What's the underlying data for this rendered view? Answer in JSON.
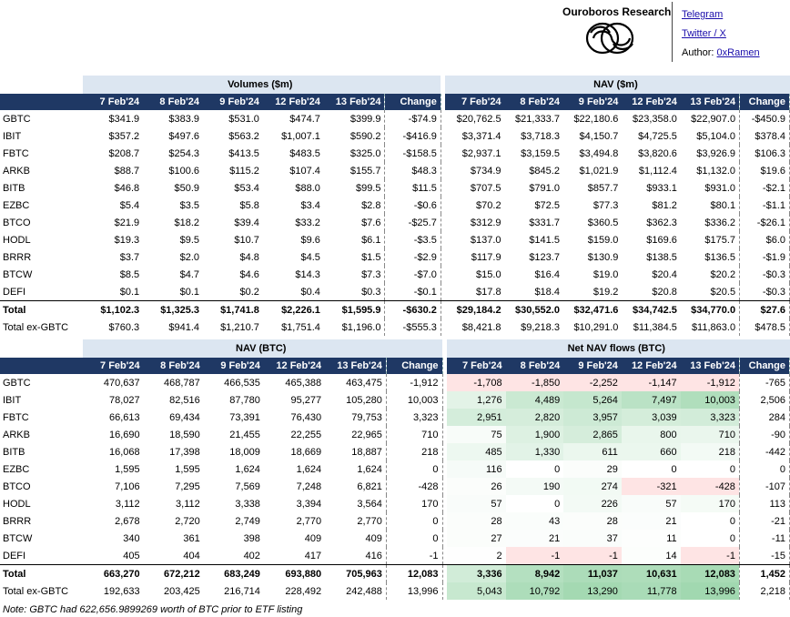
{
  "header": {
    "brand": "Ouroboros Research",
    "links": {
      "telegram": "Telegram",
      "twitter": "Twitter / X",
      "author_prefix": "Author: ",
      "author_handle": "0xRamen"
    }
  },
  "dates": [
    "7 Feb'24",
    "8 Feb'24",
    "9 Feb'24",
    "12 Feb'24",
    "13 Feb'24"
  ],
  "change_label": "Change",
  "top": {
    "left_title": "Volumes ($m)",
    "right_title": "NAV ($m)",
    "rows": [
      {
        "label": "GBTC",
        "vol": [
          "$341.9",
          "$383.9",
          "$531.0",
          "$474.7",
          "$399.9",
          "-$74.9"
        ],
        "nav": [
          "$20,762.5",
          "$21,333.7",
          "$22,180.6",
          "$23,358.0",
          "$22,907.0",
          "-$450.9"
        ]
      },
      {
        "label": "IBIT",
        "vol": [
          "$357.2",
          "$497.6",
          "$563.2",
          "$1,007.1",
          "$590.2",
          "-$416.9"
        ],
        "nav": [
          "$3,371.4",
          "$3,718.3",
          "$4,150.7",
          "$4,725.5",
          "$5,104.0",
          "$378.4"
        ]
      },
      {
        "label": "FBTC",
        "vol": [
          "$208.7",
          "$254.3",
          "$413.5",
          "$483.5",
          "$325.0",
          "-$158.5"
        ],
        "nav": [
          "$2,937.1",
          "$3,159.5",
          "$3,494.8",
          "$3,820.6",
          "$3,926.9",
          "$106.3"
        ]
      },
      {
        "label": "ARKB",
        "vol": [
          "$88.7",
          "$100.6",
          "$115.2",
          "$107.4",
          "$155.7",
          "$48.3"
        ],
        "nav": [
          "$734.9",
          "$845.2",
          "$1,021.9",
          "$1,112.4",
          "$1,132.0",
          "$19.6"
        ]
      },
      {
        "label": "BITB",
        "vol": [
          "$46.8",
          "$50.9",
          "$53.4",
          "$88.0",
          "$99.5",
          "$11.5"
        ],
        "nav": [
          "$707.5",
          "$791.0",
          "$857.7",
          "$933.1",
          "$931.0",
          "-$2.1"
        ]
      },
      {
        "label": "EZBC",
        "vol": [
          "$5.4",
          "$3.5",
          "$5.8",
          "$3.4",
          "$2.8",
          "-$0.6"
        ],
        "nav": [
          "$70.2",
          "$72.5",
          "$77.3",
          "$81.2",
          "$80.1",
          "-$1.1"
        ]
      },
      {
        "label": "BTCO",
        "vol": [
          "$21.9",
          "$18.2",
          "$39.4",
          "$33.2",
          "$7.6",
          "-$25.7"
        ],
        "nav": [
          "$312.9",
          "$331.7",
          "$360.5",
          "$362.3",
          "$336.2",
          "-$26.1"
        ]
      },
      {
        "label": "HODL",
        "vol": [
          "$19.3",
          "$9.5",
          "$10.7",
          "$9.6",
          "$6.1",
          "-$3.5"
        ],
        "nav": [
          "$137.0",
          "$141.5",
          "$159.0",
          "$169.6",
          "$175.7",
          "$6.0"
        ]
      },
      {
        "label": "BRRR",
        "vol": [
          "$3.7",
          "$2.0",
          "$4.8",
          "$4.5",
          "$1.5",
          "-$2.9"
        ],
        "nav": [
          "$117.9",
          "$123.7",
          "$130.9",
          "$138.5",
          "$136.5",
          "-$1.9"
        ]
      },
      {
        "label": "BTCW",
        "vol": [
          "$8.5",
          "$4.7",
          "$4.6",
          "$14.3",
          "$7.3",
          "-$7.0"
        ],
        "nav": [
          "$15.0",
          "$16.4",
          "$19.0",
          "$20.4",
          "$20.2",
          "-$0.3"
        ]
      },
      {
        "label": "DEFI",
        "vol": [
          "$0.1",
          "$0.1",
          "$0.2",
          "$0.4",
          "$0.3",
          "-$0.1"
        ],
        "nav": [
          "$17.8",
          "$18.4",
          "$19.2",
          "$20.8",
          "$20.5",
          "-$0.3"
        ]
      }
    ],
    "total": {
      "label": "Total",
      "vol": [
        "$1,102.3",
        "$1,325.3",
        "$1,741.8",
        "$2,226.1",
        "$1,595.9",
        "-$630.2"
      ],
      "nav": [
        "$29,184.2",
        "$30,552.0",
        "$32,471.6",
        "$34,742.5",
        "$34,770.0",
        "$27.6"
      ]
    },
    "ex": {
      "label": "Total ex-GBTC",
      "vol": [
        "$760.3",
        "$941.4",
        "$1,210.7",
        "$1,751.4",
        "$1,196.0",
        "-$555.3"
      ],
      "nav": [
        "$8,421.8",
        "$9,218.3",
        "$10,291.0",
        "$11,384.5",
        "$11,863.0",
        "$478.5"
      ]
    }
  },
  "bottom": {
    "left_title": "NAV (BTC)",
    "right_title": "Net NAV flows (BTC)",
    "rows": [
      {
        "label": "GBTC",
        "nav": [
          "470,637",
          "468,787",
          "466,535",
          "465,388",
          "463,475",
          "-1,912"
        ],
        "flow": [
          "-1,708",
          "-1,850",
          "-2,252",
          "-1,147",
          "-1,912",
          "-765"
        ]
      },
      {
        "label": "IBIT",
        "nav": [
          "78,027",
          "82,516",
          "87,780",
          "95,277",
          "105,280",
          "10,003"
        ],
        "flow": [
          "1,276",
          "4,489",
          "5,264",
          "7,497",
          "10,003",
          "2,506"
        ]
      },
      {
        "label": "FBTC",
        "nav": [
          "66,613",
          "69,434",
          "73,391",
          "76,430",
          "79,753",
          "3,323"
        ],
        "flow": [
          "2,951",
          "2,820",
          "3,957",
          "3,039",
          "3,323",
          "284"
        ]
      },
      {
        "label": "ARKB",
        "nav": [
          "16,690",
          "18,590",
          "21,455",
          "22,255",
          "22,965",
          "710"
        ],
        "flow": [
          "75",
          "1,900",
          "2,865",
          "800",
          "710",
          "-90"
        ]
      },
      {
        "label": "BITB",
        "nav": [
          "16,068",
          "17,398",
          "18,009",
          "18,669",
          "18,887",
          "218"
        ],
        "flow": [
          "485",
          "1,330",
          "611",
          "660",
          "218",
          "-442"
        ]
      },
      {
        "label": "EZBC",
        "nav": [
          "1,595",
          "1,595",
          "1,624",
          "1,624",
          "1,624",
          "0"
        ],
        "flow": [
          "116",
          "0",
          "29",
          "0",
          "0",
          "0"
        ]
      },
      {
        "label": "BTCO",
        "nav": [
          "7,106",
          "7,295",
          "7,569",
          "7,248",
          "6,821",
          "-428"
        ],
        "flow": [
          "26",
          "190",
          "274",
          "-321",
          "-428",
          "-107"
        ]
      },
      {
        "label": "HODL",
        "nav": [
          "3,112",
          "3,112",
          "3,338",
          "3,394",
          "3,564",
          "170"
        ],
        "flow": [
          "57",
          "0",
          "226",
          "57",
          "170",
          "113"
        ]
      },
      {
        "label": "BRRR",
        "nav": [
          "2,678",
          "2,720",
          "2,749",
          "2,770",
          "2,770",
          "0"
        ],
        "flow": [
          "28",
          "43",
          "28",
          "21",
          "0",
          "-21"
        ]
      },
      {
        "label": "BTCW",
        "nav": [
          "340",
          "361",
          "398",
          "409",
          "409",
          "0"
        ],
        "flow": [
          "27",
          "21",
          "37",
          "11",
          "0",
          "-11"
        ]
      },
      {
        "label": "DEFI",
        "nav": [
          "405",
          "404",
          "402",
          "417",
          "416",
          "-1"
        ],
        "flow": [
          "2",
          "-1",
          "-1",
          "14",
          "-1",
          "-15"
        ]
      }
    ],
    "total": {
      "label": "Total",
      "nav": [
        "663,270",
        "672,212",
        "683,249",
        "693,880",
        "705,963",
        "12,083"
      ],
      "flow": [
        "3,336",
        "8,942",
        "11,037",
        "10,631",
        "12,083",
        "1,452"
      ]
    },
    "ex": {
      "label": "Total ex-GBTC",
      "nav": [
        "192,633",
        "203,425",
        "216,714",
        "228,492",
        "242,488",
        "13,996"
      ],
      "flow": [
        "5,043",
        "10,792",
        "13,290",
        "11,778",
        "13,996",
        "2,218"
      ]
    }
  },
  "note": "Note: GBTC had 622,656.9899269 worth of BTC prior to ETF listing",
  "colors": {
    "header_navy": "#1f3864",
    "section_blue": "#dce6f1",
    "positive_max": "#7ccf97",
    "negative_max": "#f3b7b7"
  }
}
